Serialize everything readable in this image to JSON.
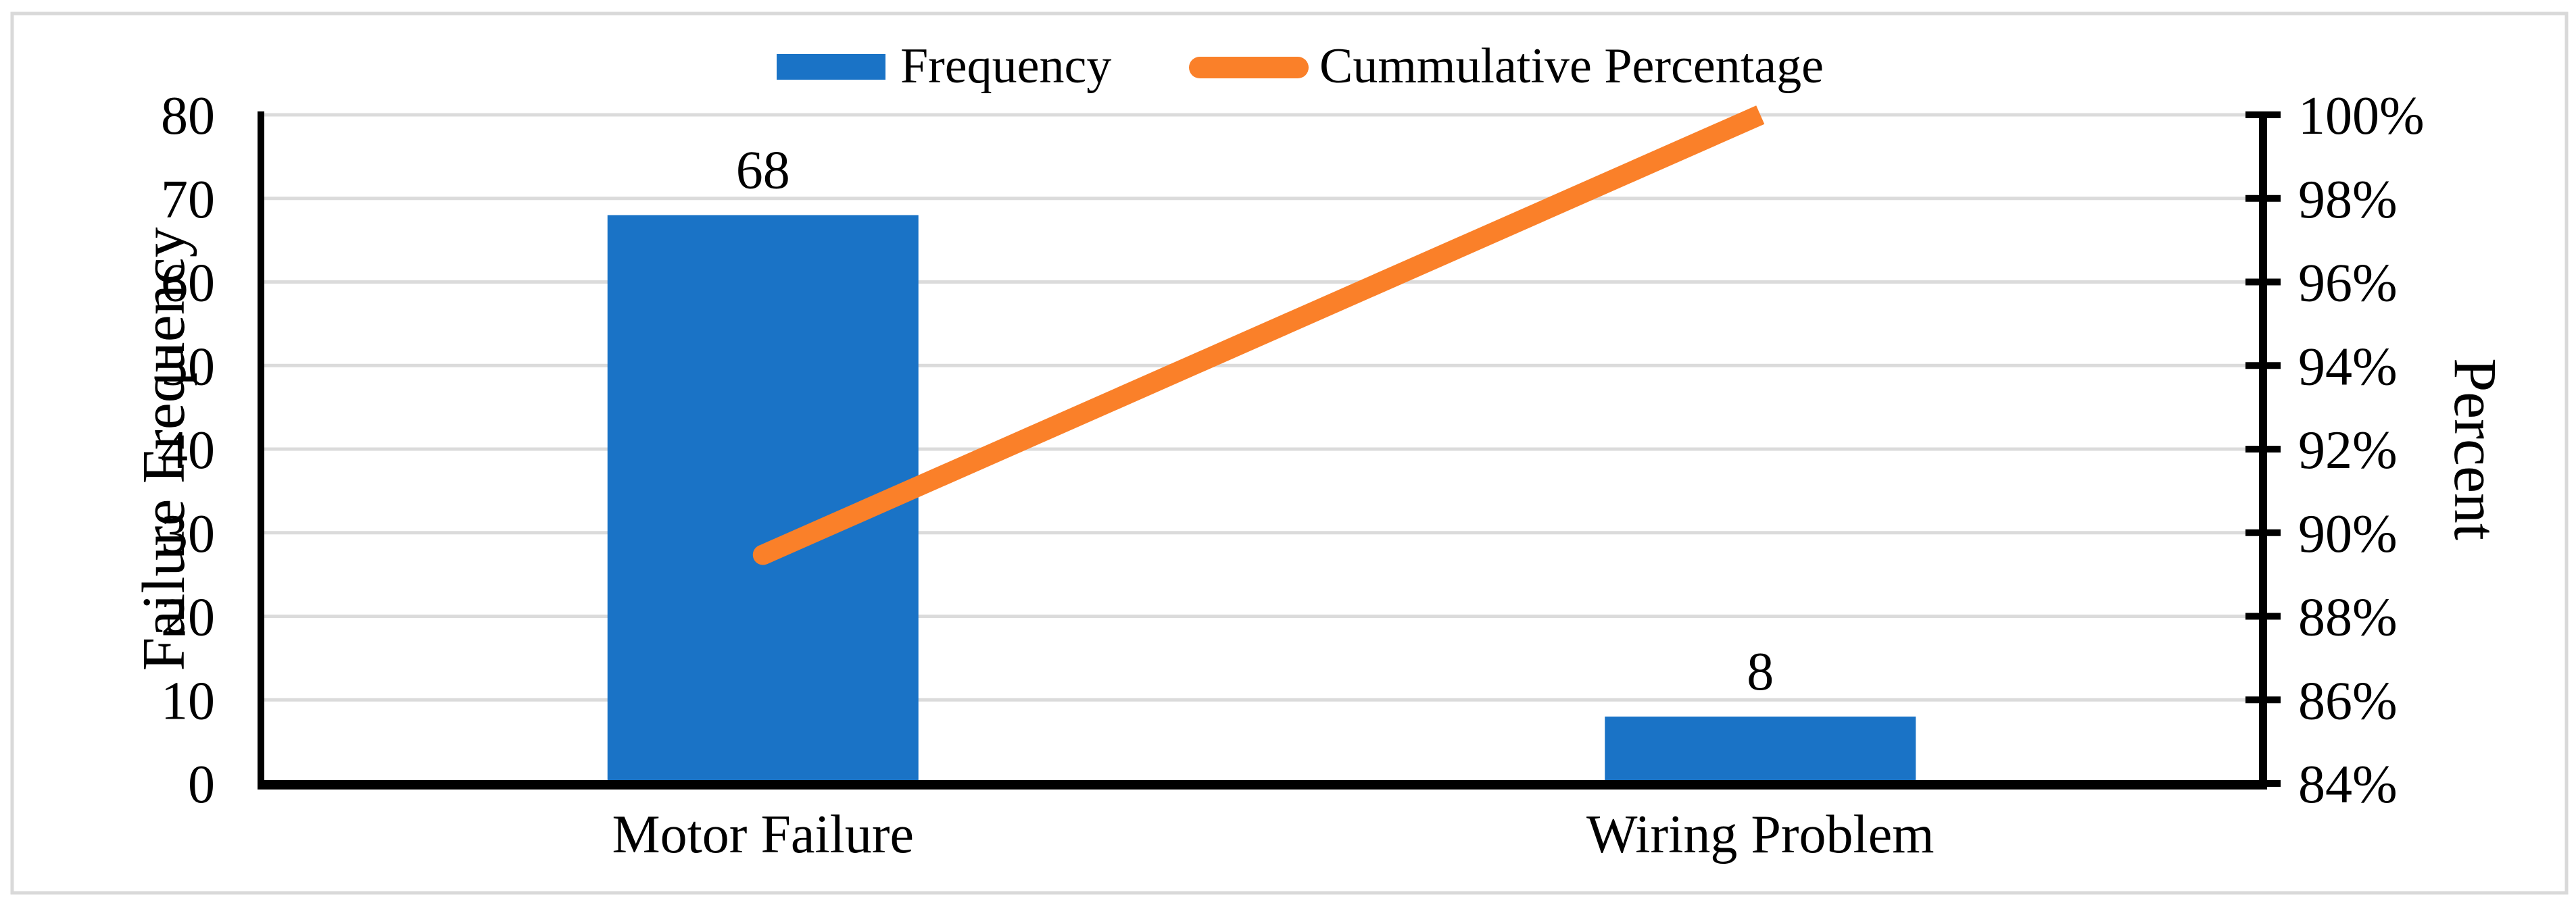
{
  "chart_data": {
    "type": "bar",
    "subtype": "pareto-combo",
    "categories": [
      "Motor Failure",
      "Wiring Problem"
    ],
    "series": [
      {
        "name": "Frequency",
        "type": "bar",
        "axis": "left",
        "values": [
          68,
          8
        ]
      },
      {
        "name": "Cummulative Percentage",
        "type": "line",
        "axis": "right",
        "values_percent": [
          89.47,
          100
        ]
      }
    ],
    "bar_value_labels": [
      "68",
      "8"
    ],
    "left_axis": {
      "title": "Failure Frequency",
      "min": 0,
      "max": 80,
      "step": 10,
      "tick_labels": [
        "0",
        "10",
        "20",
        "30",
        "40",
        "50",
        "60",
        "70",
        "80"
      ]
    },
    "right_axis": {
      "title": "Percent",
      "min": 84,
      "max": 100,
      "step": 2,
      "tick_labels": [
        "84%",
        "86%",
        "88%",
        "90%",
        "92%",
        "94%",
        "96%",
        "98%",
        "100%"
      ]
    },
    "grid": true,
    "legend": {
      "position": "top",
      "items": [
        {
          "label": "Frequency",
          "swatch": "bar"
        },
        {
          "label": "Cummulative Percentage",
          "swatch": "line"
        }
      ]
    },
    "colors": {
      "bar": "#1A73C6",
      "line": "#FA8029",
      "gridline": "#DBDBDB",
      "axis": "#000000",
      "border": "#D9D9D9",
      "background": "#FFFFFF",
      "text": "#000000"
    }
  }
}
